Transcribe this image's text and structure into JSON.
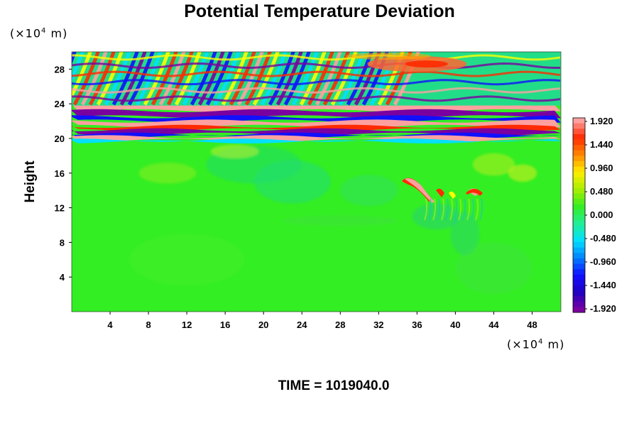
{
  "title": "Potential Temperature Deviation",
  "ylabel": "Height",
  "time_label": "TIME = 1019040.0",
  "units": {
    "y_prefix": "(×10",
    "y_exp": "4",
    "y_suffix": " m)",
    "x_prefix": "(×10",
    "x_exp": "4",
    "x_suffix": " m)"
  },
  "chart_data": {
    "type": "heatmap",
    "title": "Potential Temperature Deviation",
    "xlabel": "",
    "ylabel": "Height",
    "x_unit": "×10^4 m",
    "y_unit": "×10^4 m",
    "xlim": [
      0,
      51
    ],
    "ylim": [
      0,
      30
    ],
    "x_ticks": [
      4,
      8,
      12,
      16,
      20,
      24,
      28,
      32,
      36,
      40,
      44,
      48
    ],
    "y_ticks": [
      4,
      8,
      12,
      16,
      20,
      24,
      28
    ],
    "colorbar": {
      "ticks": [
        "1.920",
        "1.440",
        "0.960",
        "0.480",
        "0.000",
        "-0.480",
        "-0.960",
        "-1.440",
        "-1.920"
      ],
      "range": [
        -1.92,
        1.92
      ]
    },
    "background_color": "#33ee22",
    "palette": [
      "#7a00a0",
      "#1010ff",
      "#00e0ff",
      "#33ee22",
      "#ffff00",
      "#ff2a00",
      "#ffa0a0"
    ],
    "time": 1019040.0
  }
}
